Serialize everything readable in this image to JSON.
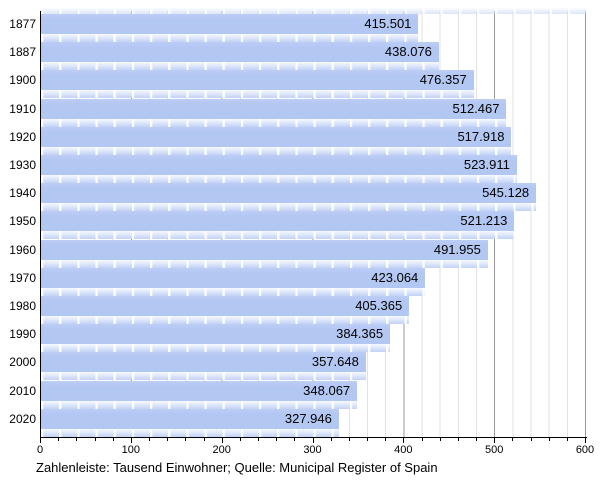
{
  "chart_data": {
    "type": "bar",
    "orientation": "horizontal",
    "title": "",
    "categories": [
      "1877",
      "1887",
      "1900",
      "1910",
      "1920",
      "1930",
      "1940",
      "1950",
      "1960",
      "1970",
      "1980",
      "1990",
      "2000",
      "2010",
      "2020"
    ],
    "values": [
      415.501,
      438.076,
      476.357,
      512.467,
      517.918,
      523.911,
      545.128,
      521.213,
      491.955,
      423.064,
      405.365,
      384.365,
      357.648,
      348.067,
      327.946
    ],
    "value_labels": [
      "415.501",
      "438.076",
      "476.357",
      "512.467",
      "517.918",
      "523.911",
      "545.128",
      "521.213",
      "491.955",
      "423.064",
      "405.365",
      "384.365",
      "357.648",
      "348.067",
      "327.946"
    ],
    "unit": "Tausend Einwohner",
    "x_ticks": [
      "0",
      "100",
      "200",
      "300",
      "400",
      "500",
      "600"
    ],
    "xlim": [
      0,
      600
    ],
    "minor_tick_step": 20,
    "major_tick_step": 100,
    "grid": true,
    "legend": null,
    "caption": "Zahlenleiste: Tausend Einwohner; Quelle: Municipal Register of Spain",
    "colors": {
      "bar": "#b3c7f3",
      "ruler_top": "#f7faff",
      "ruler_bottom": "#c2d2f6",
      "grid_minor": "#e2e2e2",
      "grid_major": "#9a9a9a",
      "axis": "#000000",
      "text": "#000000",
      "background": "#ffffff"
    }
  }
}
